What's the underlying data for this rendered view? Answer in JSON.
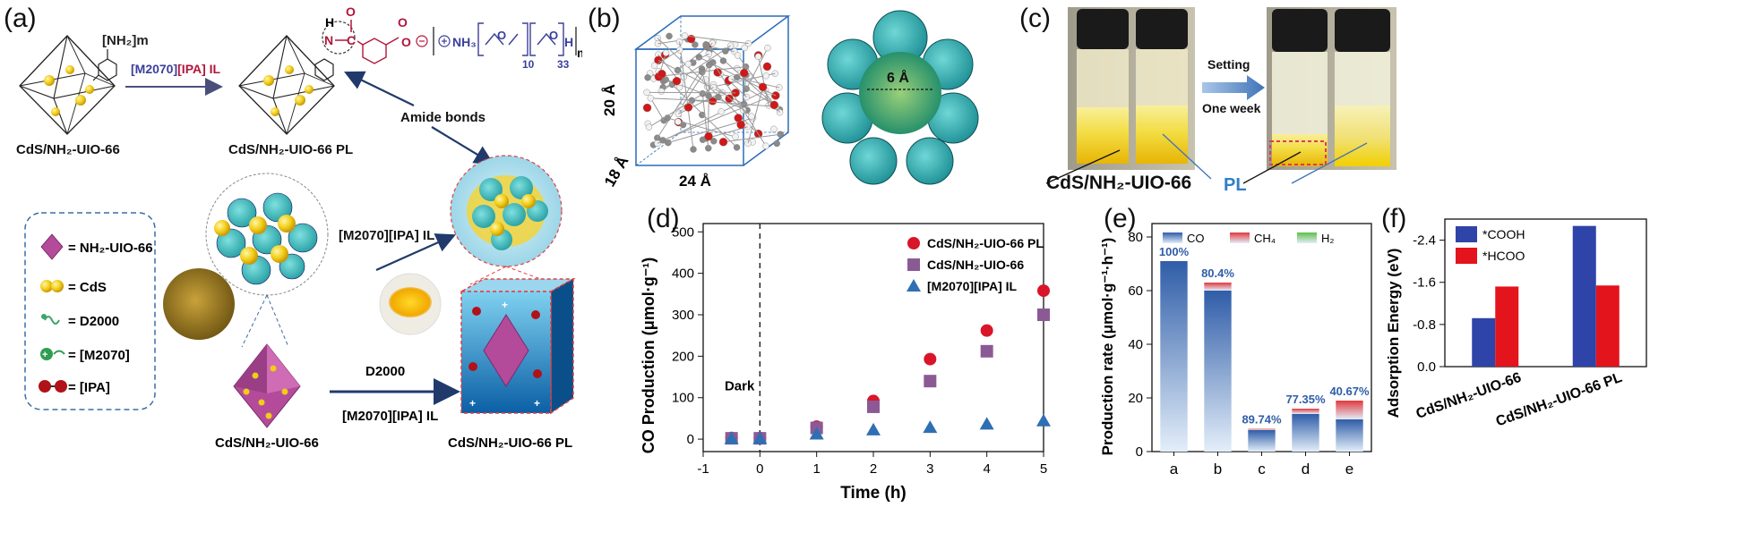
{
  "panels": {
    "a": {
      "label": "(a)",
      "amine_group": "[NH₂]m",
      "reaction_il": "[M2070][IPA] IL",
      "reaction_il_part1": "[M2070]",
      "reaction_il_part2": "[IPA] IL",
      "start_material": "CdS/NH₂-UIO-66",
      "product": "CdS/NH₂-UIO-66 PL",
      "amide_label": "Amide bonds",
      "polymer_formula": "NH₃",
      "subscript_10": "10",
      "subscript_33": "33",
      "subscript_m": "m",
      "legend": [
        "= NH₂-UIO-66",
        "= CdS",
        "= D2000",
        "= [M2070]",
        "= [IPA]"
      ],
      "il_middle": "[M2070][IPA] IL",
      "d2000_arrow": "D2000",
      "il_bottom": "[M2070][IPA] IL",
      "bottom_left_caption": "CdS/NH₂-UIO-66",
      "bottom_right_caption": "CdS/NH₂-UIO-66  PL"
    },
    "b": {
      "label": "(b)",
      "dim_height": "20 Å",
      "dim_depth": "18 Å",
      "dim_width": "24 Å",
      "pore": "6 Å"
    },
    "c": {
      "label": "(c)",
      "setting": "Setting",
      "duration": "One week",
      "sample": "CdS/NH₂-UIO-66",
      "pl": "PL"
    },
    "d": {
      "label": "(d)"
    },
    "e": {
      "label": "(e)"
    },
    "f": {
      "label": "(f)"
    }
  },
  "chart_data": [
    {
      "panel": "d",
      "type": "scatter",
      "xlabel": "Time (h)",
      "ylabel": "CO Production (μmol·g⁻¹)",
      "xlim": [
        -1,
        5
      ],
      "ylim": [
        -30,
        520
      ],
      "xticks": [
        -1,
        0,
        1,
        2,
        3,
        4,
        5
      ],
      "yticks": [
        0,
        100,
        200,
        300,
        400,
        500
      ],
      "annotation": "Dark",
      "legend_position": "top-right",
      "series": [
        {
          "name": "CdS/NH₂-UIO-66 PL",
          "marker": "circle",
          "color": "#d9152a",
          "x": [
            -0.5,
            0,
            1,
            2,
            3,
            4,
            5
          ],
          "y": [
            3,
            3,
            30,
            92,
            193,
            262,
            358
          ]
        },
        {
          "name": "CdS/NH₂-UIO-66",
          "marker": "square",
          "color": "#8b5a95",
          "x": [
            -0.5,
            0,
            1,
            2,
            3,
            4,
            5
          ],
          "y": [
            2,
            2,
            27,
            78,
            140,
            212,
            300
          ]
        },
        {
          "name": "[M2070][IPA] IL",
          "marker": "triangle",
          "color": "#2f6fb3",
          "x": [
            -0.5,
            0,
            1,
            2,
            3,
            4,
            5
          ],
          "y": [
            1,
            1,
            12,
            22,
            28,
            36,
            44
          ]
        }
      ]
    },
    {
      "panel": "e",
      "type": "bar",
      "xlabel": "",
      "ylabel": "Production rate (μmol·g⁻¹·h⁻¹)",
      "ylim": [
        0,
        85
      ],
      "yticks": [
        0,
        20,
        40,
        60,
        80
      ],
      "categories": [
        "a",
        "b",
        "c",
        "d",
        "e"
      ],
      "legend_position": "top",
      "series": [
        {
          "name": "CO",
          "color": "#2f5da8",
          "values": [
            71,
            60,
            8,
            14,
            12
          ]
        },
        {
          "name": "CH₄",
          "color": "#e0393e",
          "values": [
            0,
            3,
            0.5,
            2,
            7
          ]
        },
        {
          "name": "H₂",
          "color": "#5fbf4a",
          "values": [
            0,
            0,
            0,
            0,
            0
          ]
        }
      ],
      "bar_labels": [
        "100%",
        "80.4%",
        "89.74%",
        "77.35%",
        "40.67%"
      ]
    },
    {
      "panel": "f",
      "type": "bar",
      "xlabel": "",
      "ylabel": "Adsorption Energy (eV)",
      "ylim": [
        0,
        -2.8
      ],
      "yticks": [
        0.0,
        -0.8,
        -1.6,
        -2.4
      ],
      "ytick_labels": [
        "0.0",
        "-0.8",
        "-1.6",
        "-2.4"
      ],
      "categories": [
        "CdS/NH₂-UIO-66",
        "CdS/NH₂-UIO-66 PL"
      ],
      "legend_position": "top-left",
      "series": [
        {
          "name": "*COOH",
          "color": "#2e44a8",
          "values": [
            -0.92,
            -2.67
          ]
        },
        {
          "name": "*HCOO",
          "color": "#e3141c",
          "values": [
            -1.52,
            -1.54
          ]
        }
      ]
    }
  ]
}
